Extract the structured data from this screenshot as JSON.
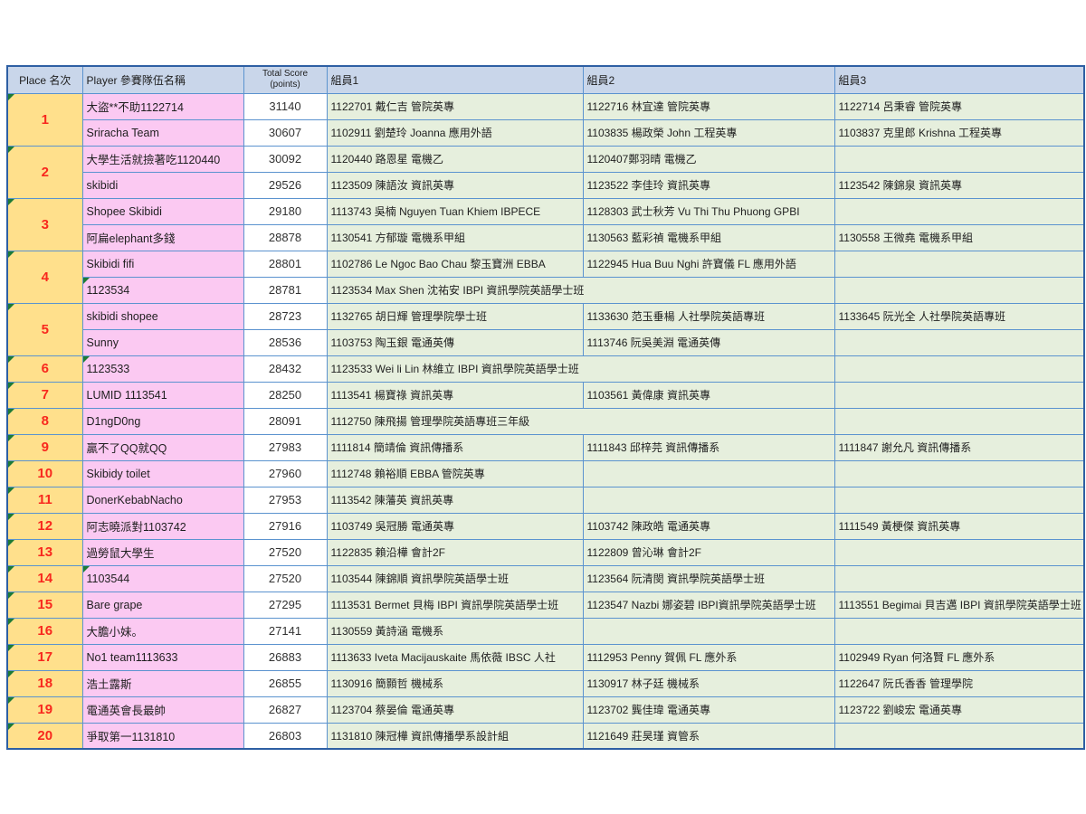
{
  "colors": {
    "header_bg": "#c9d6ea",
    "place_bg": "#ffe08c",
    "place_number": "#f8281e",
    "team_bg": "#fbc9f2",
    "score_bg": "#ffffff",
    "member_bg": "#e6efdd",
    "grid_border": "#5b93cf",
    "outer_border": "#2e5fa3",
    "cell_marker": "#1d7a36"
  },
  "header": {
    "place": "Place 名次",
    "player": "Player 參賽隊伍名稱",
    "score_line1": "Total Score",
    "score_line2": "(points)",
    "m1": "組員1",
    "m2": "組員2",
    "m3": "組員3"
  },
  "rows": [
    {
      "place": "1",
      "span": 2,
      "marker": true,
      "player": "大盜**不助1122714",
      "score": "31140",
      "m1": "1122701 戴仁吉 管院英專",
      "m2": "1122716 林宜達 管院英專",
      "m3": "1122714 呂秉睿 管院英專"
    },
    {
      "player": "Sriracha Team",
      "score": "30607",
      "m1": "1102911 劉楚玲 Joanna 應用外語",
      "m2": "1103835 楊政榮 John 工程英專",
      "m3": "1103837 克里郎 Krishna 工程英專"
    },
    {
      "place": "2",
      "span": 2,
      "marker": true,
      "player": "大學生活就撿著吃1120440",
      "score": "30092",
      "m1": "1120440 路恩星 電機乙",
      "m2": "1120407鄭羽晴 電機乙",
      "m3": ""
    },
    {
      "player": "skibidi",
      "score": "29526",
      "m1": "1123509 陳語汝 資訊英專",
      "m2": "1123522 李佳玲 資訊英專",
      "m3": "1123542 陳錦泉 資訊英專"
    },
    {
      "place": "3",
      "span": 2,
      "marker": true,
      "player": "Shopee Skibidi",
      "score": "29180",
      "m1": "1113743  吳楠 Nguyen Tuan Khiem  IBPECE",
      "m2": "1128303 武士秋芳 Vu Thi Thu Phuong  GPBI",
      "m3": ""
    },
    {
      "player": "阿扁elephant多錢",
      "score": "28878",
      "m1": "1130541 方郁璇 電機系甲組",
      "m2": "1130563 藍彩禎 電機系甲組",
      "m3": "1130558 王微堯 電機系甲組"
    },
    {
      "place": "4",
      "span": 2,
      "marker": true,
      "player": "Skibidi fifi",
      "score": "28801",
      "m1": "1102786  Le Ngoc Bao Chau  黎玉寶洲 EBBA",
      "m2": "1122945  Hua Buu Nghi 許寶儀  FL 應用外語",
      "m3": ""
    },
    {
      "player": "1123534",
      "player_marker": true,
      "score": "28781",
      "m1": "1123534  Max Shen 沈祐安  IBPI 資訊學院英語學士班",
      "m1span": 2,
      "m3": ""
    },
    {
      "place": "5",
      "span": 2,
      "marker": true,
      "player": "skibidi shopee",
      "score": "28723",
      "m1": "1132765 胡日輝 管理學院學士班",
      "m2": "1133630 范玉垂楊 人社學院英語專班",
      "m3": "1133645  阮光全 人社學院英語專班"
    },
    {
      "player": "Sunny",
      "score": "28536",
      "m1": "1103753 陶玉銀 電通英傳",
      "m2": "1113746 阮吳美淵 電通英傳",
      "m3": ""
    },
    {
      "place": "6",
      "marker": true,
      "player": "1123533",
      "player_marker": true,
      "score": "28432",
      "m1": "1123533  Wei li Lin 林維立 IBPI 資訊學院英語學士班",
      "m1span": 2,
      "m3": ""
    },
    {
      "place": "7",
      "marker": true,
      "player": "LUMID 1113541",
      "score": "28250",
      "m1": "1113541 楊寶祿 資訊英專",
      "m2": "1103561 黃偉康 資訊英專",
      "m3": ""
    },
    {
      "place": "8",
      "marker": true,
      "player": "D1ngD0ng",
      "score": "28091",
      "m1": "1112750 陳飛揚 管理學院英語專班三年級",
      "m1span": 2,
      "m3": ""
    },
    {
      "place": "9",
      "marker": true,
      "player": "贏不了QQ就QQ",
      "score": "27983",
      "m1": "1111814 簡靖倫 資訊傳播系",
      "m2": "1111843 邱梓芫 資訊傳播系",
      "m3": "1111847 謝允凡 資訊傳播系"
    },
    {
      "place": "10",
      "marker": true,
      "player": "Skibidy toilet",
      "score": "27960",
      "m1": "1112748 賴裕順  EBBA 管院英專",
      "m2": "",
      "m3": ""
    },
    {
      "place": "11",
      "marker": true,
      "player": "DonerKebabNacho",
      "score": "27953",
      "m1": "1113542 陳藩英 資訊英專",
      "m2": "",
      "m3": ""
    },
    {
      "place": "12",
      "marker": true,
      "player": "阿志曉派對1103742",
      "score": "27916",
      "m1": "1103749  吳冠勝  電通英專",
      "m2": "1103742  陳政皓  電通英專",
      "m3": "1111549  黃梗傑 資訊英專"
    },
    {
      "place": "13",
      "marker": true,
      "player": "過勞鼠大學生",
      "score": "27520",
      "m1": "1122835 賴沿樺 會計2F",
      "m2": "1122809 曾沁琳 會計2F",
      "m3": ""
    },
    {
      "place": "14",
      "marker": true,
      "player": "1103544",
      "player_marker": true,
      "score": "27520",
      "m1": "1103544  陳錦順  資訊學院英語學士班",
      "m2": "1123564  阮清閔  資訊學院英語學士班",
      "m3": ""
    },
    {
      "place": "15",
      "marker": true,
      "player": "Bare grape",
      "score": "27295",
      "m1": "1113531  Bermet 貝梅 IBPI 資訊學院英語學士班",
      "m2": "1123547  Nazbi 娜姿碧 IBPI資訊學院英語學士班",
      "m3": "1113551  Begimai 貝吉邁 IBPI 資訊學院英語學士班"
    },
    {
      "place": "16",
      "marker": true,
      "player": "大膽小妹。",
      "score": "27141",
      "m1": "1130559 黃詩涵 電機系",
      "m2": "",
      "m3": ""
    },
    {
      "place": "17",
      "marker": true,
      "player": "No1 team1113633",
      "score": "26883",
      "m1": "1113633 Iveta Macijauskaite 馬依薇 IBSC 人社",
      "m2": "1112953 Penny 賀佩 FL 應外系",
      "m3": "1102949 Ryan 何洛賢 FL 應外系"
    },
    {
      "place": "18",
      "marker": true,
      "player": "浩土露斯",
      "score": "26855",
      "m1": "1130916 簡顥哲 機械系",
      "m2": "1130917 林子廷 機械系",
      "m3": "1122647 阮氏香香 管理學院"
    },
    {
      "place": "19",
      "marker": true,
      "player": "電通英會長最帥",
      "score": "26827",
      "m1": "1123704 蔡晏倫 電通英專",
      "m2": "1123702 龔佳瑋 電通英專",
      "m3": "1123722 劉峻宏 電通英專"
    },
    {
      "place": "20",
      "marker": true,
      "player": "爭取第一1131810",
      "score": "26803",
      "m1": "1131810 陳冠樺 資訊傳播學系設計組",
      "m2": "1121649 莊昊瑾 資管系",
      "m3": ""
    }
  ]
}
